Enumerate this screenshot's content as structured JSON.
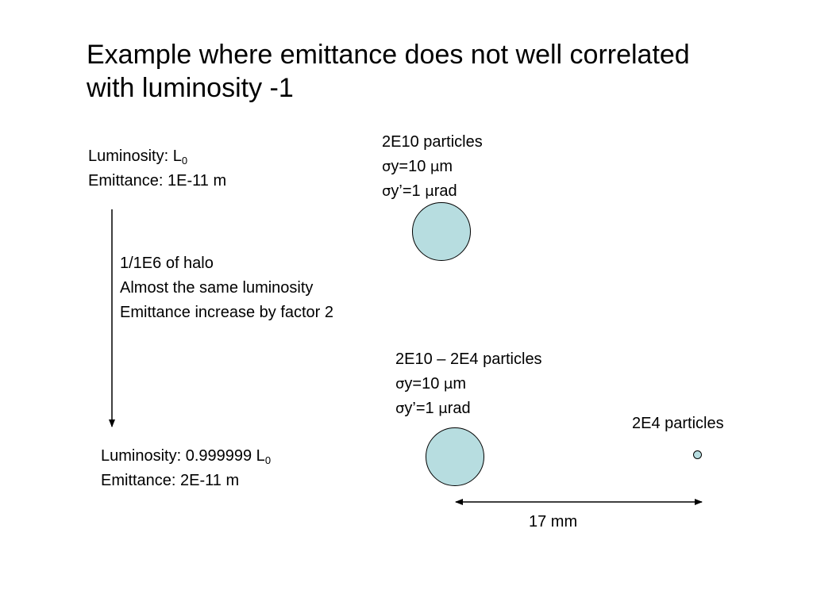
{
  "slide": {
    "title": "Example where emittance does not well correlated with luminosity -1",
    "top_state": {
      "luminosity_prefix": "Luminosity: L",
      "luminosity_sub": "0",
      "emittance": "Emittance: 1E-11 m"
    },
    "bottom_state": {
      "luminosity_prefix": "Luminosity: 0.999999 L",
      "luminosity_sub": "0",
      "emittance": "Emittance: 2E-11 m"
    },
    "halo_notes": [
      "1/1E6 of halo",
      "Almost the same luminosity",
      "Emittance increase by factor 2"
    ],
    "beam_top": {
      "particles": "2E10 particles",
      "sigma_y_sym": "σ",
      "sigma_y_rest": "y=10 ",
      "sigma_y_mu": "μ",
      "sigma_y_unit": "m",
      "sigma_yp_sym": "σ",
      "sigma_yp_rest": "y’=1 ",
      "sigma_yp_mu": "μ",
      "sigma_yp_unit": "rad"
    },
    "beam_bottom": {
      "particles": "2E10 – 2E4 particles",
      "sigma_y_sym": "σ",
      "sigma_y_rest": "y=10 ",
      "sigma_y_mu": "μ",
      "sigma_y_unit": "m",
      "sigma_yp_sym": "σ",
      "sigma_yp_rest": "y’=1 ",
      "sigma_yp_mu": "μ",
      "sigma_yp_unit": "rad"
    },
    "halo_particles": "2E4 particles",
    "distance": "17 mm",
    "colors": {
      "beam_fill": "#b7dde0",
      "outline": "#000000"
    }
  }
}
